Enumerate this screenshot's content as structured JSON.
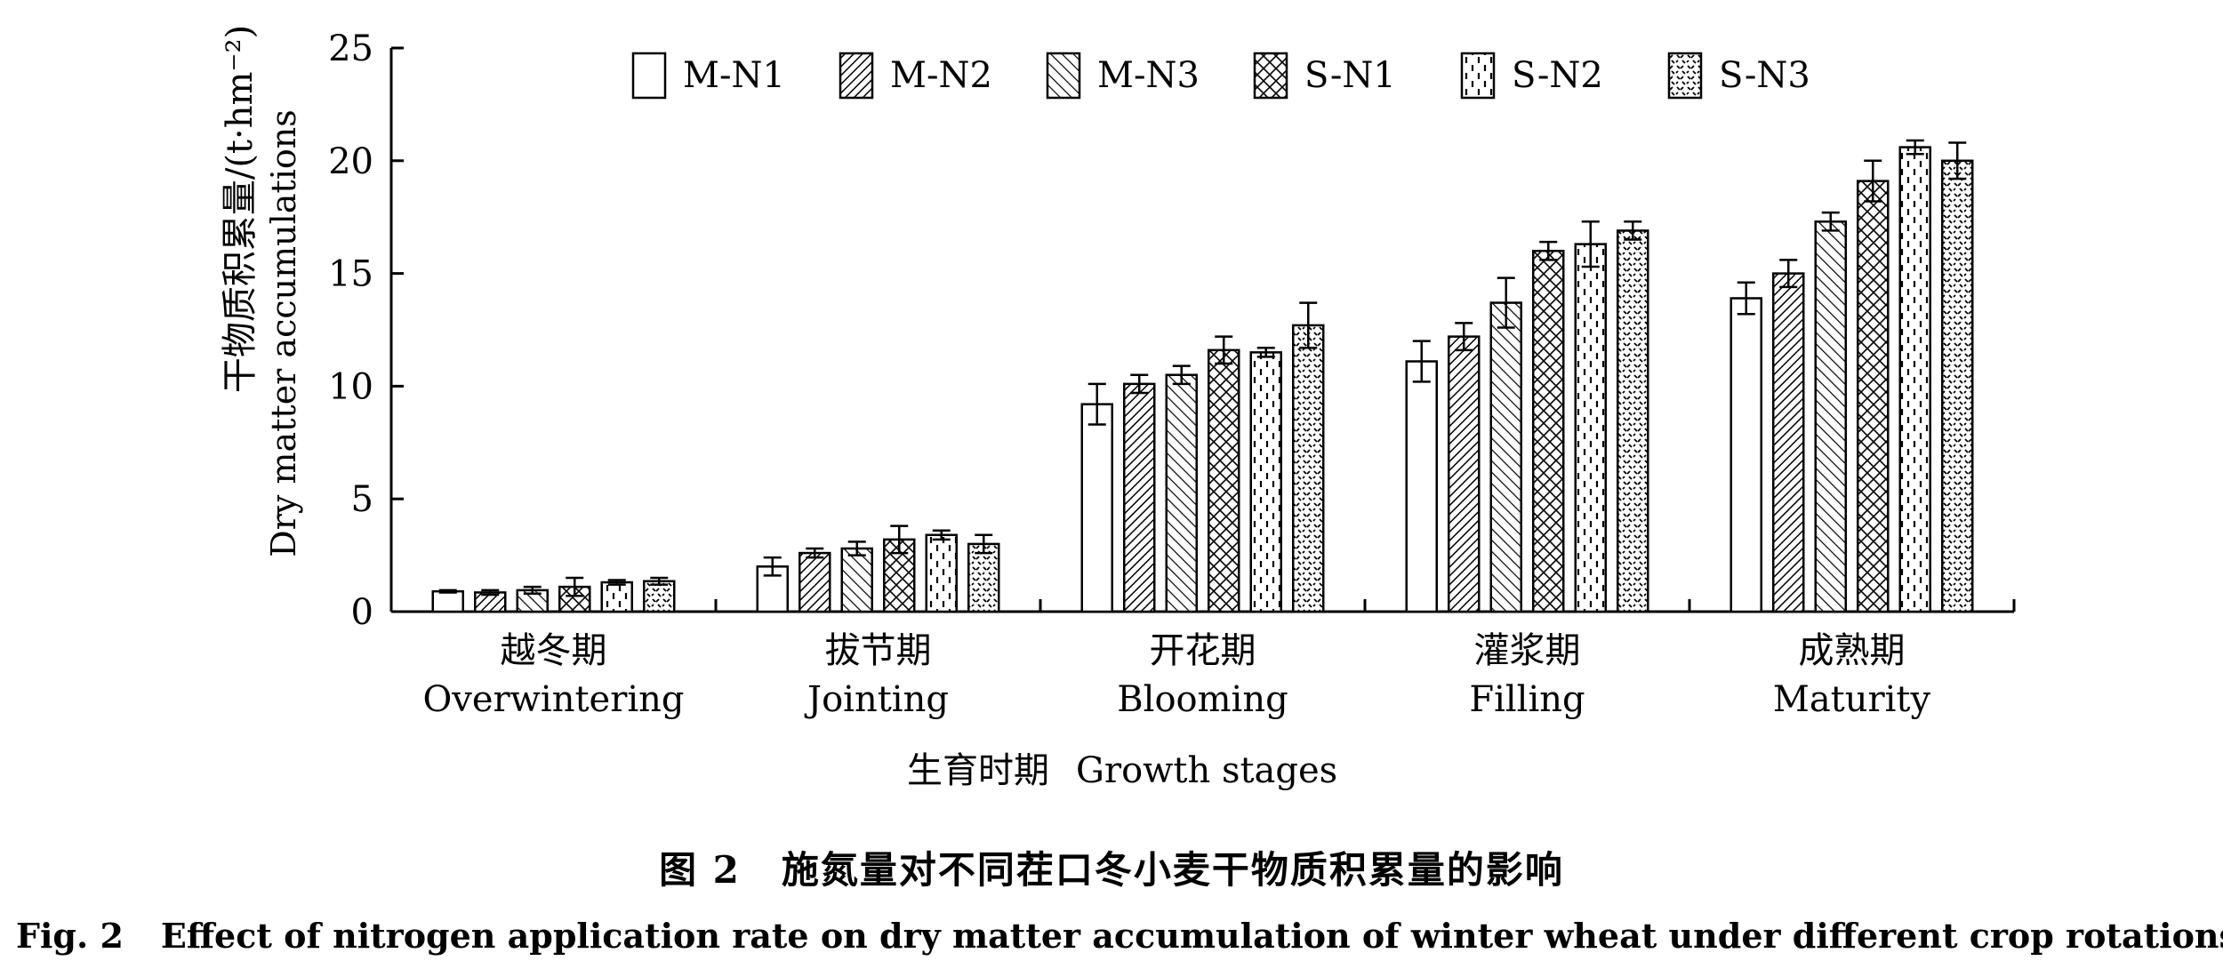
{
  "chart_data": {
    "type": "bar",
    "ylabel_cn": "干物质积累量/(t·hm⁻²)",
    "ylabel_en": "Dry matter accumulations",
    "xlabel_cn": "生育时期",
    "xlabel_en": "Growth stages",
    "ylim": [
      0,
      25
    ],
    "yticks": [
      0,
      5,
      10,
      15,
      20,
      25
    ],
    "categories": [
      {
        "cn": "越冬期",
        "en": "Overwintering"
      },
      {
        "cn": "拔节期",
        "en": "Jointing"
      },
      {
        "cn": "开花期",
        "en": "Blooming"
      },
      {
        "cn": "灌浆期",
        "en": "Filling"
      },
      {
        "cn": "成熟期",
        "en": "Maturity"
      }
    ],
    "legend_position": "top",
    "series": [
      {
        "name": "M-N1",
        "pattern": "plain",
        "values": [
          0.9,
          2.0,
          9.2,
          11.1,
          13.9
        ],
        "errors": [
          0.05,
          0.4,
          0.9,
          0.9,
          0.7
        ]
      },
      {
        "name": "M-N2",
        "pattern": "dense-diag",
        "values": [
          0.85,
          2.6,
          10.1,
          12.2,
          15.0
        ],
        "errors": [
          0.1,
          0.2,
          0.4,
          0.6,
          0.6
        ]
      },
      {
        "name": "M-N3",
        "pattern": "sparse-diag",
        "values": [
          0.95,
          2.8,
          10.5,
          13.7,
          17.3
        ],
        "errors": [
          0.15,
          0.3,
          0.4,
          1.1,
          0.4
        ]
      },
      {
        "name": "S-N1",
        "pattern": "crosshatch",
        "values": [
          1.1,
          3.2,
          11.6,
          16.0,
          19.1
        ],
        "errors": [
          0.4,
          0.6,
          0.6,
          0.4,
          0.9
        ]
      },
      {
        "name": "S-N2",
        "pattern": "dashes",
        "values": [
          1.3,
          3.4,
          11.5,
          16.3,
          20.6
        ],
        "errors": [
          0.1,
          0.2,
          0.2,
          1.0,
          0.3
        ]
      },
      {
        "name": "S-N3",
        "pattern": "dots",
        "values": [
          1.35,
          3.0,
          12.7,
          16.9,
          20.0
        ],
        "errors": [
          0.15,
          0.4,
          1.0,
          0.4,
          0.8
        ]
      }
    ]
  },
  "caption": {
    "cn_no": "图 2",
    "cn_text": "施氮量对不同茬口冬小麦干物质积累量的影响",
    "en_no": "Fig. 2",
    "en_text": "Effect of nitrogen application rate on dry matter accumulation of winter wheat under different crop rotations"
  }
}
